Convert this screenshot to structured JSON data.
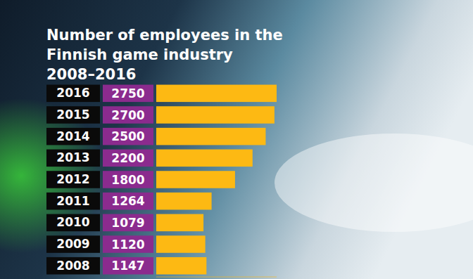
{
  "chart_data": {
    "type": "bar",
    "orientation": "horizontal",
    "title": "Number of employees in the Finnish game industry 2008–2016",
    "categories": [
      "2016",
      "2015",
      "2014",
      "2013",
      "2012",
      "2011",
      "2010",
      "2009",
      "2008"
    ],
    "values": [
      2750,
      2700,
      2500,
      2200,
      1800,
      1264,
      1079,
      1120,
      1147
    ],
    "color": "#fdb913",
    "xlim": [
      0,
      2750
    ],
    "data_labels": true,
    "tick_labels": false,
    "grid": false
  }
}
